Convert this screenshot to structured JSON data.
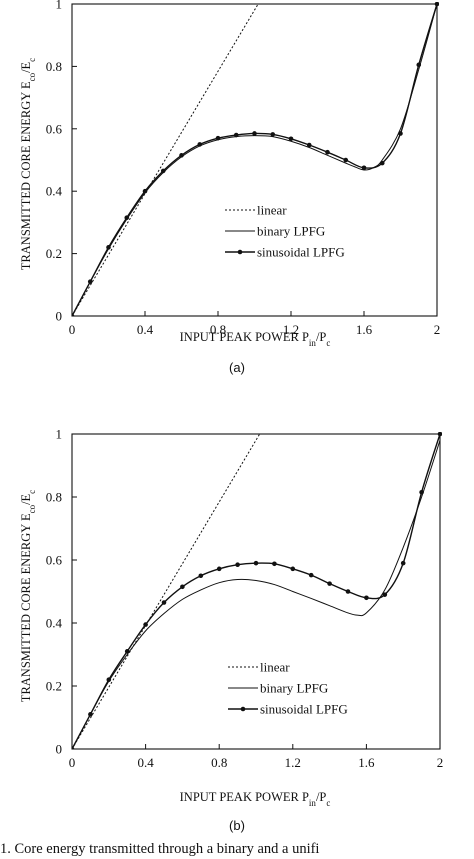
{
  "chart_data": [
    {
      "type": "line",
      "panel_label": "(a)",
      "xlabel": "INPUT PEAK POWER P",
      "xlabel_sub": "in",
      "xlabel_tail": "/P",
      "xlabel_sub2": "c",
      "ylabel": "TRANSMITTED CORE ENERGY E",
      "ylabel_sub": "co",
      "ylabel_tail": "/E",
      "ylabel_sub2": "c",
      "xlim": [
        0,
        2
      ],
      "ylim": [
        0,
        1
      ],
      "x_ticks": [
        "0",
        "0.4",
        "0.8",
        "1.2",
        "1.6",
        "2"
      ],
      "y_ticks": [
        "0",
        "0.2",
        "0.4",
        "0.6",
        "0.8",
        "1"
      ],
      "legend_position": "center-right",
      "series": [
        {
          "name": "linear",
          "style": "dotted",
          "x": [
            0,
            1.02
          ],
          "y": [
            0,
            1
          ]
        },
        {
          "name": "binary LPFG",
          "style": "solid",
          "x": [
            0,
            0.1,
            0.2,
            0.3,
            0.4,
            0.5,
            0.6,
            0.7,
            0.8,
            0.9,
            1.0,
            1.1,
            1.2,
            1.3,
            1.4,
            1.5,
            1.55,
            1.6,
            1.65,
            1.7,
            1.8,
            1.9,
            2.0
          ],
          "y": [
            0,
            0.11,
            0.215,
            0.31,
            0.395,
            0.46,
            0.51,
            0.545,
            0.565,
            0.575,
            0.578,
            0.575,
            0.56,
            0.54,
            0.515,
            0.49,
            0.478,
            0.468,
            0.475,
            0.5,
            0.6,
            0.79,
            1.0
          ]
        },
        {
          "name": "sinusoidal LPFG",
          "style": "solid-marker",
          "x": [
            0,
            0.1,
            0.2,
            0.3,
            0.4,
            0.5,
            0.6,
            0.7,
            0.8,
            0.9,
            1.0,
            1.1,
            1.2,
            1.3,
            1.4,
            1.5,
            1.6,
            1.7,
            1.8,
            1.9,
            2.0
          ],
          "y": [
            0,
            0.11,
            0.22,
            0.315,
            0.4,
            0.465,
            0.515,
            0.55,
            0.57,
            0.58,
            0.585,
            0.582,
            0.568,
            0.548,
            0.525,
            0.5,
            0.475,
            0.49,
            0.585,
            0.805,
            1.0
          ]
        }
      ]
    },
    {
      "type": "line",
      "panel_label": "(b)",
      "xlabel": "INPUT PEAK POWER P",
      "xlabel_sub": "in",
      "xlabel_tail": "/P",
      "xlabel_sub2": "c",
      "ylabel": "TRANSMITTED CORE ENERGY E",
      "ylabel_sub": "co",
      "ylabel_tail": "/E",
      "ylabel_sub2": "c",
      "xlim": [
        0,
        2
      ],
      "ylim": [
        0,
        1
      ],
      "x_ticks": [
        "0",
        "0.4",
        "0.8",
        "1.2",
        "1.6",
        "2"
      ],
      "y_ticks": [
        "0",
        "0.2",
        "0.4",
        "0.6",
        "0.8",
        "1"
      ],
      "legend_position": "center-right",
      "series": [
        {
          "name": "linear",
          "style": "dotted",
          "x": [
            0,
            1.02
          ],
          "y": [
            0,
            1
          ]
        },
        {
          "name": "binary LPFG",
          "style": "solid",
          "x": [
            0,
            0.1,
            0.2,
            0.3,
            0.4,
            0.5,
            0.6,
            0.7,
            0.8,
            0.9,
            1.0,
            1.1,
            1.2,
            1.3,
            1.4,
            1.5,
            1.55,
            1.6,
            1.7,
            1.8,
            1.9,
            2.0
          ],
          "y": [
            0,
            0.11,
            0.215,
            0.3,
            0.375,
            0.43,
            0.475,
            0.505,
            0.528,
            0.538,
            0.535,
            0.522,
            0.5,
            0.478,
            0.455,
            0.432,
            0.425,
            0.432,
            0.505,
            0.64,
            0.8,
            0.98
          ]
        },
        {
          "name": "sinusoidal LPFG",
          "style": "solid-marker",
          "x": [
            0,
            0.1,
            0.2,
            0.3,
            0.4,
            0.5,
            0.6,
            0.7,
            0.8,
            0.9,
            1.0,
            1.1,
            1.2,
            1.3,
            1.4,
            1.5,
            1.6,
            1.7,
            1.8,
            1.9,
            2.0
          ],
          "y": [
            0,
            0.11,
            0.22,
            0.31,
            0.395,
            0.465,
            0.515,
            0.55,
            0.572,
            0.585,
            0.59,
            0.588,
            0.572,
            0.552,
            0.525,
            0.5,
            0.48,
            0.49,
            0.59,
            0.815,
            1.0
          ]
        }
      ]
    }
  ],
  "caption": "1.   Core energy transmitted through a binary and a unifi"
}
